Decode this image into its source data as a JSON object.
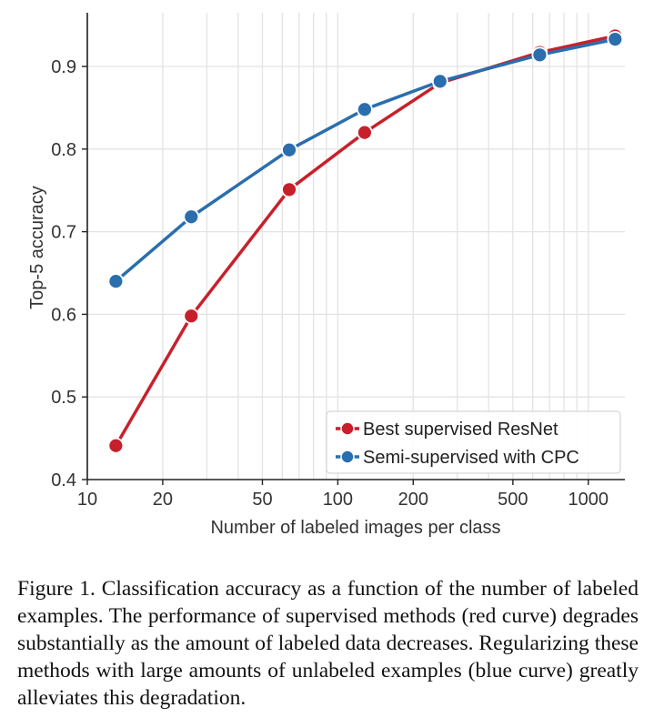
{
  "chart_data": {
    "type": "line",
    "xlabel": "Number of labeled images per class",
    "ylabel": "Top-5 accuracy",
    "xscale": "log",
    "xlim": [
      10,
      1400
    ],
    "ylim": [
      0.4,
      0.965
    ],
    "xticks": [
      10,
      20,
      50,
      100,
      200,
      500,
      1000
    ],
    "xtick_labels": [
      "10",
      "20",
      "50",
      "100",
      "200",
      "500",
      "1000"
    ],
    "yticks": [
      0.4,
      0.5,
      0.6,
      0.7,
      0.8,
      0.9
    ],
    "ytick_labels": [
      "0.4",
      "0.5",
      "0.6",
      "0.7",
      "0.8",
      "0.9"
    ],
    "grid": true,
    "legend_position": "lower-right",
    "series": [
      {
        "name": "Best supervised ResNet",
        "color": "#c8202b",
        "x": [
          13,
          26,
          64,
          128,
          256,
          640,
          1280
        ],
        "y": [
          0.441,
          0.598,
          0.751,
          0.82,
          0.88,
          0.917,
          0.937
        ]
      },
      {
        "name": "Semi-supervised with CPC",
        "color": "#2a6ead",
        "x": [
          13,
          26,
          64,
          128,
          256,
          640,
          1280
        ],
        "y": [
          0.64,
          0.718,
          0.799,
          0.848,
          0.882,
          0.914,
          0.933
        ]
      }
    ]
  },
  "caption": "Figure 1. Classification accuracy as a function of the number of labeled examples. The performance of supervised methods (red curve) degrades substantially as the amount of labeled data decreases. Regularizing these methods with large amounts of unlabeled examples (blue curve) greatly alleviates this degradation."
}
